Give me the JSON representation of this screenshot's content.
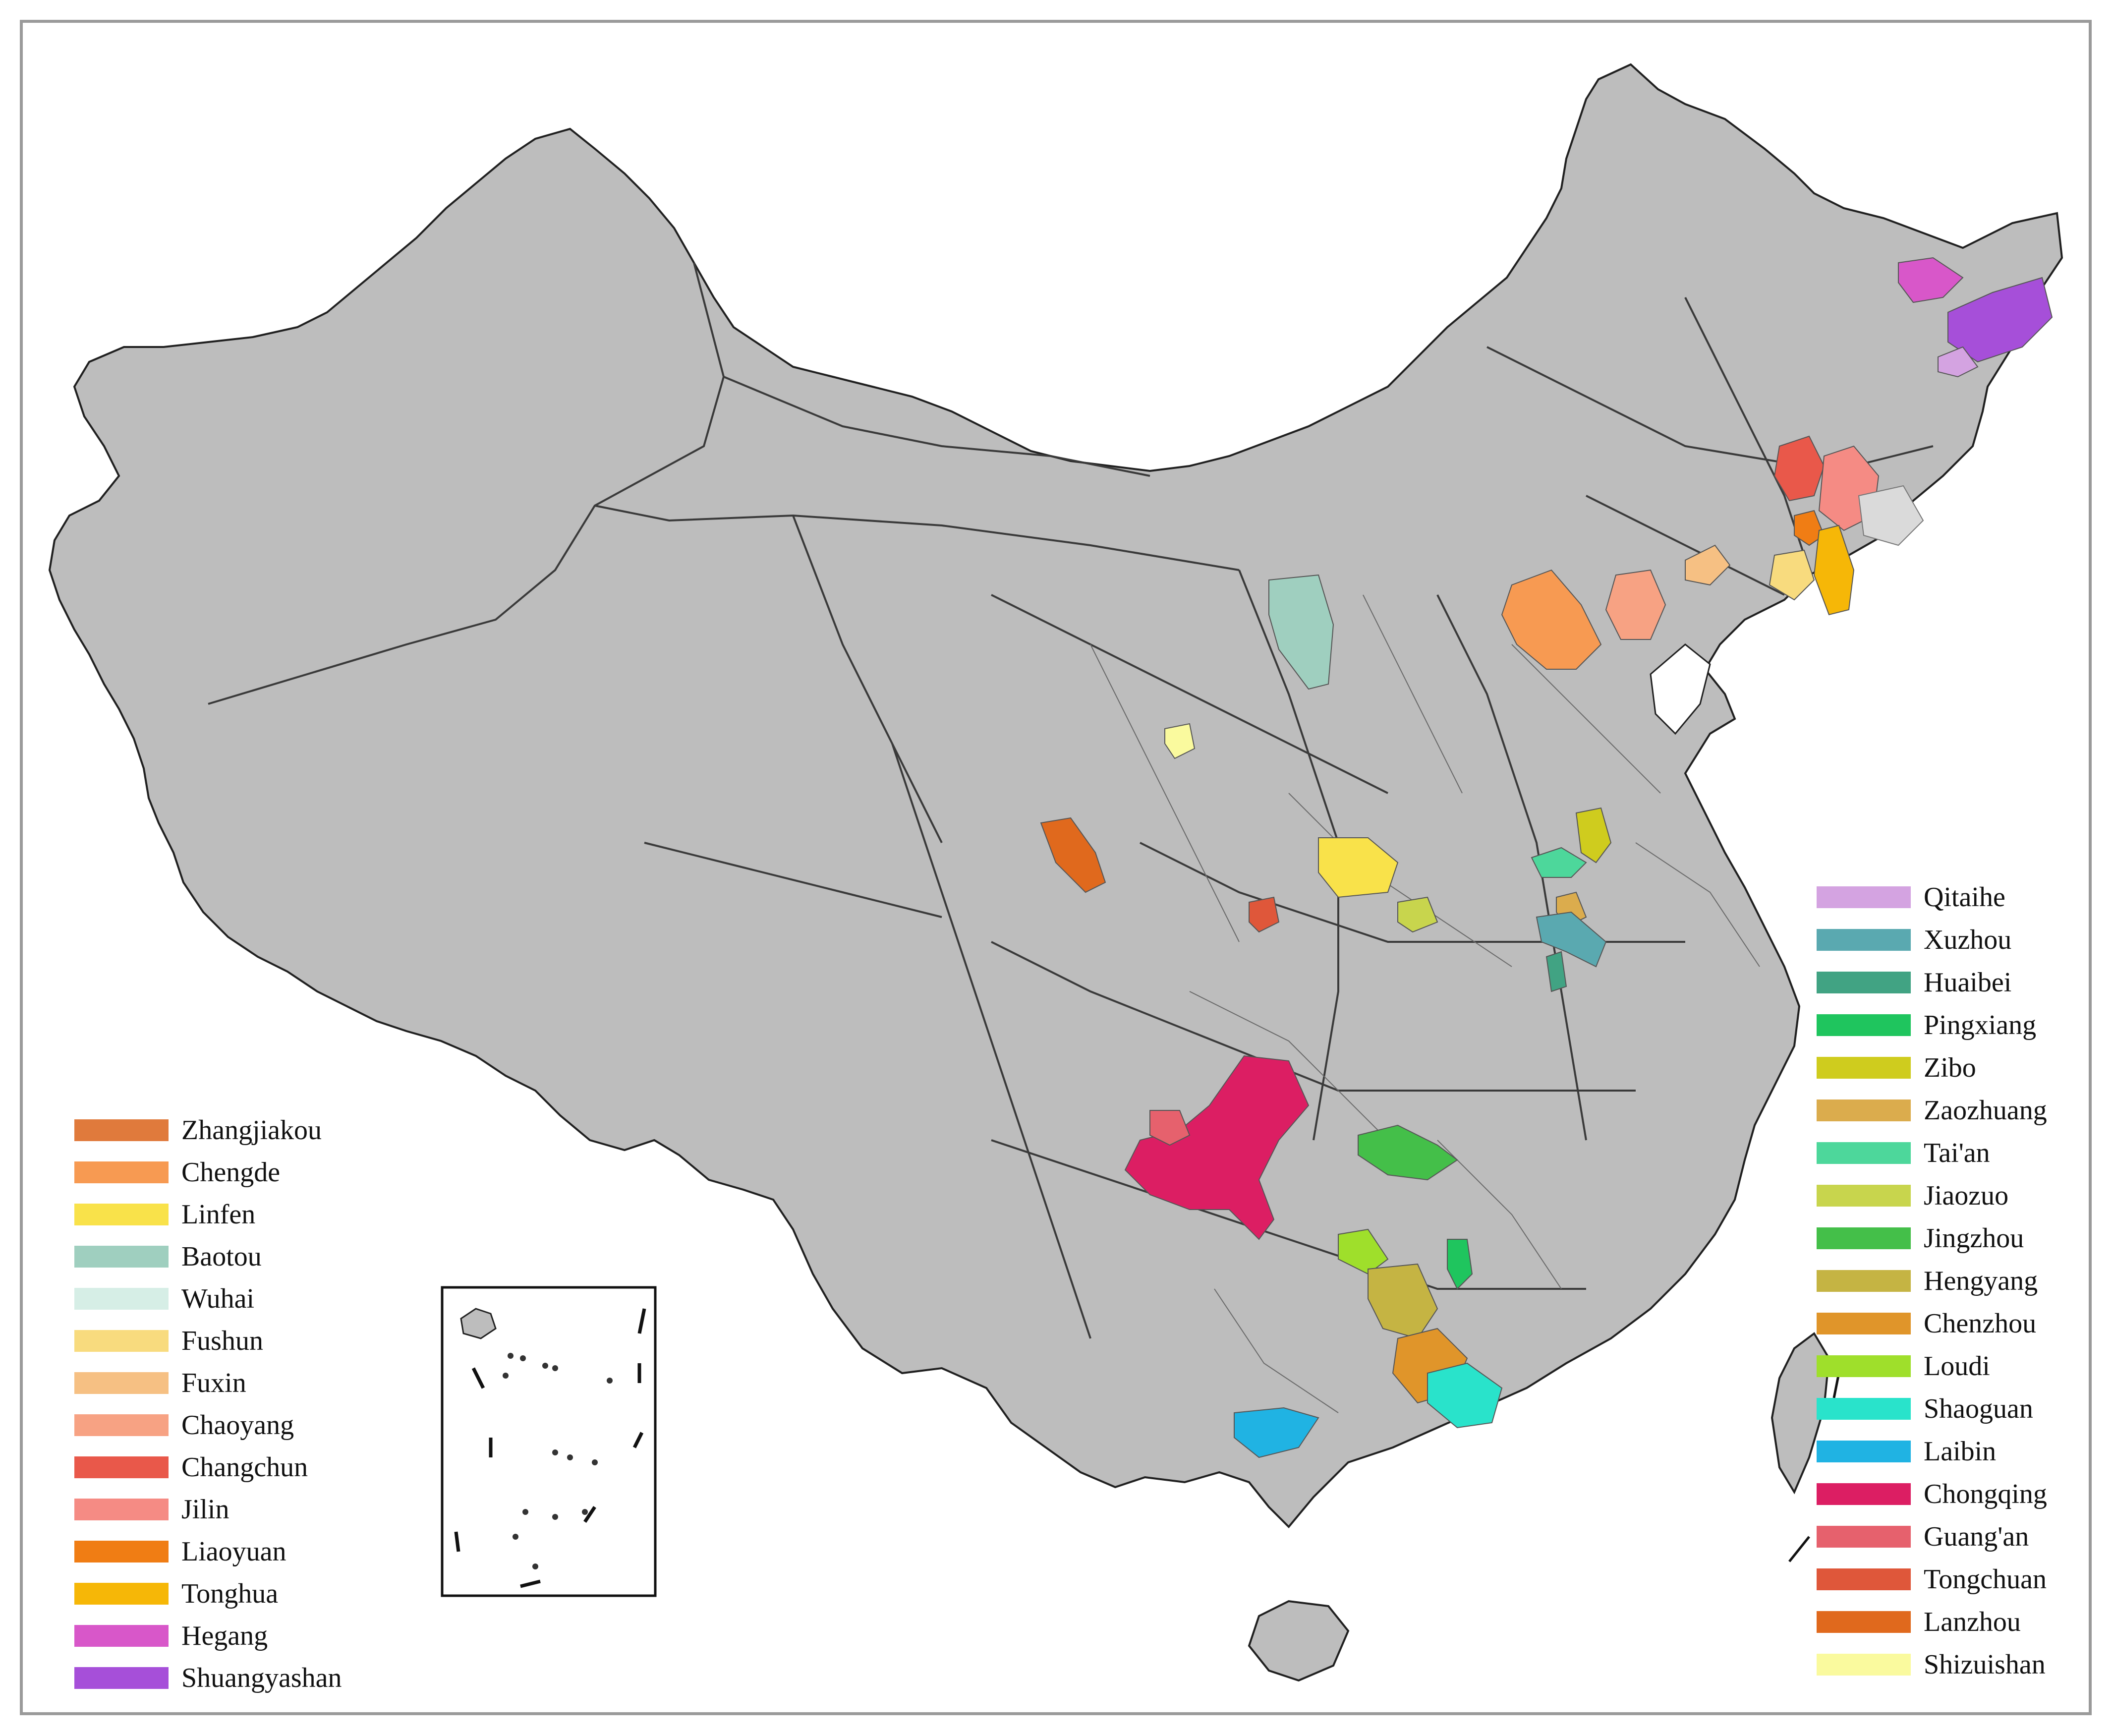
{
  "map": {
    "land_color": "#bdbdbd",
    "border_color": "#202020",
    "sea_color": "#ffffff"
  },
  "legend_left": [
    {
      "label": "Zhangjiakou",
      "color": "#e07a3c"
    },
    {
      "label": "Chengde",
      "color": "#f79a52"
    },
    {
      "label": "Linfen",
      "color": "#f9e24a"
    },
    {
      "label": "Baotou",
      "color": "#9fcfbf"
    },
    {
      "label": "Wuhai",
      "color": "#d6eee6"
    },
    {
      "label": "Fushun",
      "color": "#f8db7e"
    },
    {
      "label": "Fuxin",
      "color": "#f6c083"
    },
    {
      "label": "Chaoyang",
      "color": "#f7a283"
    },
    {
      "label": "Changchun",
      "color": "#e9584a"
    },
    {
      "label": "Jilin",
      "color": "#f58b84"
    },
    {
      "label": "Liaoyuan",
      "color": "#f07d14"
    },
    {
      "label": "Tonghua",
      "color": "#f6b707"
    },
    {
      "label": "Hegang",
      "color": "#d857c9"
    },
    {
      "label": "Shuangyashan",
      "color": "#a64fd9"
    }
  ],
  "legend_right": [
    {
      "label": "Qitaihe",
      "color": "#d4a3e1"
    },
    {
      "label": "Xuzhou",
      "color": "#5aa9b0"
    },
    {
      "label": "Huaibei",
      "color": "#41a383"
    },
    {
      "label": "Pingxiang",
      "color": "#1fc55e"
    },
    {
      "label": "Zibo",
      "color": "#cfcc1e"
    },
    {
      "label": "Zaozhuang",
      "color": "#dbac4d"
    },
    {
      "label": "Tai'an",
      "color": "#4dd79b"
    },
    {
      "label": "Jiaozuo",
      "color": "#c8d54d"
    },
    {
      "label": "Jingzhou",
      "color": "#44bf49"
    },
    {
      "label": "Hengyang",
      "color": "#c5b443"
    },
    {
      "label": "Chenzhou",
      "color": "#e0952a"
    },
    {
      "label": "Loudi",
      "color": "#9fdf2b"
    },
    {
      "label": "Shaoguan",
      "color": "#29e3cb"
    },
    {
      "label": "Laibin",
      "color": "#20b3e3"
    },
    {
      "label": "Chongqing",
      "color": "#dc1e63"
    },
    {
      "label": "Guang'an",
      "color": "#e6616d"
    },
    {
      "label": "Tongchuan",
      "color": "#df573a"
    },
    {
      "label": "Lanzhou",
      "color": "#e0691d"
    },
    {
      "label": "Shizuishan",
      "color": "#fafa9e"
    }
  ]
}
